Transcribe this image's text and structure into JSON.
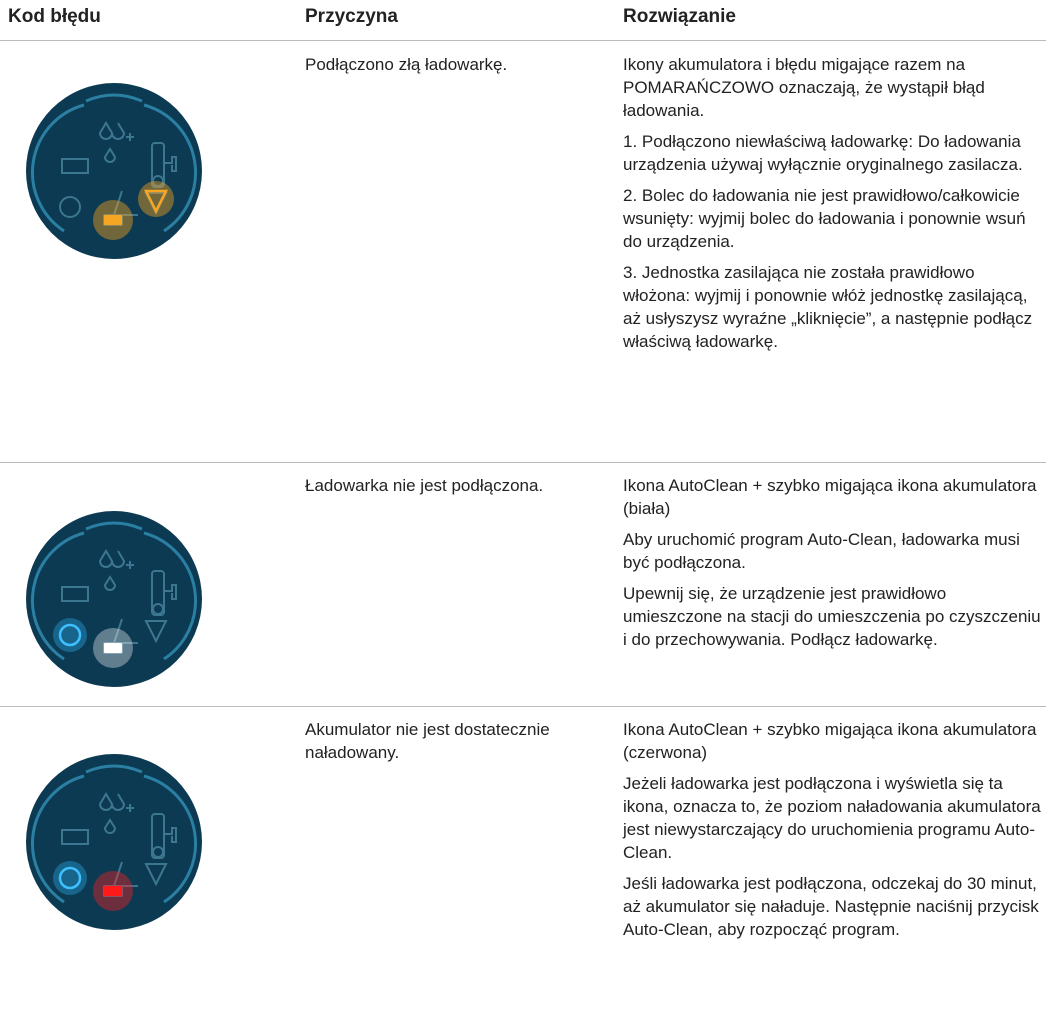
{
  "header": {
    "columns": [
      "Kod błędu",
      "Przyczyna",
      "Rozwiązanie"
    ]
  },
  "rows": [
    {
      "cause": "Podłączono złą ładowarkę.",
      "solution": [
        "Ikony akumulatora i błędu migające razem na POMARAŃCZOWO oznaczają, że wystąpił błąd ładowania.",
        "1. Podłączono niewłaściwą ładowarkę: Do ładowania urządzenia używaj wyłącznie oryginalnego zasilacza.",
        "2. Bolec do ładowania nie jest prawidłowo/całkowicie wsunięty: wyjmij bolec do ładowania i ponownie wsuń do urządzenia.",
        "3. Jednostka zasilająca nie została prawidłowo włożona: wyjmij i ponownie włóż jednostkę zasilającą, aż usłyszysz wyraźne „kliknięcie”, a następnie podłącz właściwą ładowarkę."
      ]
    },
    {
      "cause": "Ładowarka nie jest podłączona.",
      "solution": [
        "Ikona AutoClean + szybko migająca ikona akumulatora (biała)",
        "Aby uruchomić program Auto-Clean, ładowarka musi być podłączona.",
        "Upewnij się, że urządzenie jest prawidłowo umieszczone na stacji do umieszczenia po czyszczeniu i do przechowywania. Podłącz ładowarkę."
      ]
    },
    {
      "cause": "Akumulator nie jest dostatecznie naładowany.",
      "solution": [
        "Ikona AutoClean + szybko migająca ikona akumulatora (czerwona)",
        "Jeżeli ładowarka jest podłączona i wyświetla się ta ikona, oznacza to, że poziom naładowania akumulatora jest niewystarczający do uruchomienia programu Auto-Clean.",
        "Jeśli ładowarka jest podłączona, odczekaj do 30 minut, aż akumulator się naładuje. Następnie naciśnij przycisk Auto-Clean, aby rozpocząć program."
      ]
    }
  ]
}
